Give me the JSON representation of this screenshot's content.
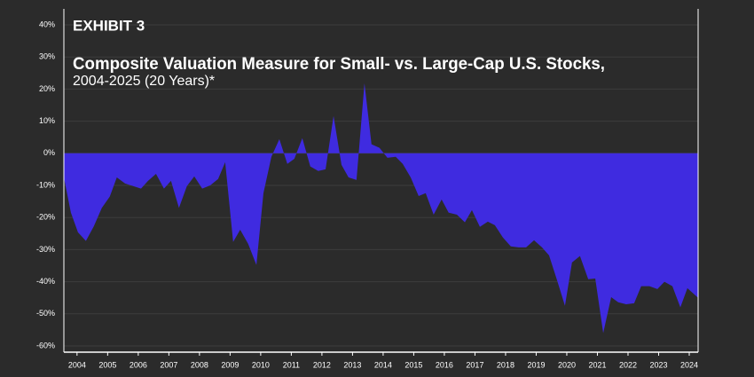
{
  "chart_data": {
    "type": "area",
    "label": "EXHIBIT 3",
    "title": "Composite Valuation Measure for Small- vs. Large-Cap U.S. Stocks,",
    "subtitle": "2004-2025 (20 Years)*",
    "x": [
      2003.57,
      2003.8,
      2004.03,
      2004.29,
      2004.55,
      2004.81,
      2005.07,
      2005.3,
      2005.57,
      2005.83,
      2006.09,
      2006.32,
      2006.58,
      2006.84,
      2007.07,
      2007.33,
      2007.59,
      2007.83,
      2008.09,
      2008.35,
      2008.61,
      2008.84,
      2009.1,
      2009.33,
      2009.59,
      2009.86,
      2010.09,
      2010.35,
      2010.61,
      2010.87,
      2011.1,
      2011.36,
      2011.62,
      2011.88,
      2012.12,
      2012.38,
      2012.64,
      2012.87,
      2013.13,
      2013.39,
      2013.62,
      2013.88,
      2014.14,
      2014.41,
      2014.64,
      2014.9,
      2015.16,
      2015.39,
      2015.65,
      2015.91,
      2016.14,
      2016.41,
      2016.67,
      2016.9,
      2017.16,
      2017.42,
      2017.65,
      2017.91,
      2018.17,
      2018.43,
      2018.67,
      2018.93,
      2019.19,
      2019.42,
      2019.68,
      2019.94,
      2020.17,
      2020.43,
      2020.7,
      2020.93,
      2021.19,
      2021.45,
      2021.68,
      2021.94,
      2022.2,
      2022.43,
      2022.7,
      2022.96,
      2023.19,
      2023.45,
      2023.71,
      2023.94,
      2024.29
    ],
    "values": [
      -7.5,
      -18.5,
      -24.6,
      -27.3,
      -22.7,
      -17,
      -13.5,
      -7.5,
      -9.4,
      -10.2,
      -11,
      -8.6,
      -6.4,
      -11,
      -8.6,
      -17,
      -10.2,
      -7.2,
      -11,
      -10,
      -8,
      -2.8,
      -27.6,
      -23.8,
      -28.2,
      -34.8,
      -12.4,
      -1.1,
      4.4,
      -3.3,
      -1.7,
      4.7,
      -4.1,
      -5.5,
      -5,
      11.6,
      -3.6,
      -7.5,
      -8.3,
      21.8,
      2.8,
      1.7,
      -1.4,
      -1.1,
      -3.3,
      -7.5,
      -13.3,
      -12.4,
      -19.1,
      -14.4,
      -18.5,
      -19.1,
      -21.5,
      -17.7,
      -22.9,
      -21.3,
      -22.4,
      -26.2,
      -29,
      -29.3,
      -29.3,
      -27.1,
      -29.3,
      -31.8,
      -39.5,
      -47.5,
      -34,
      -32,
      -39.2,
      -39,
      -56,
      -44.8,
      -46.4,
      -47,
      -46.7,
      -41.4,
      -41.4,
      -42.3,
      -40,
      -41.4,
      -48,
      -42,
      -45
    ],
    "color": "#3f2be0",
    "xlim": [
      2003.57,
      2024.29
    ],
    "xticks": [
      2004,
      2005,
      2006,
      2007,
      2008,
      2009,
      2010,
      2011,
      2012,
      2013,
      2014,
      2015,
      2016,
      2017,
      2018,
      2019,
      2020,
      2021,
      2022,
      2023,
      2024
    ],
    "ylim": [
      -60,
      40
    ],
    "yticks": [
      {
        "value": -60,
        "label": "-60%"
      },
      {
        "value": -50,
        "label": "-50%"
      },
      {
        "value": -40,
        "label": "-40%"
      },
      {
        "value": -30,
        "label": "-30%"
      },
      {
        "value": -20,
        "label": "-20%"
      },
      {
        "value": -10,
        "label": "-10%"
      },
      {
        "value": 0,
        "label": "0%"
      },
      {
        "value": 10,
        "label": "10%"
      },
      {
        "value": 20,
        "label": "20%"
      },
      {
        "value": 30,
        "label": "30%"
      },
      {
        "value": 40,
        "label": "40%"
      }
    ],
    "grid": true
  }
}
